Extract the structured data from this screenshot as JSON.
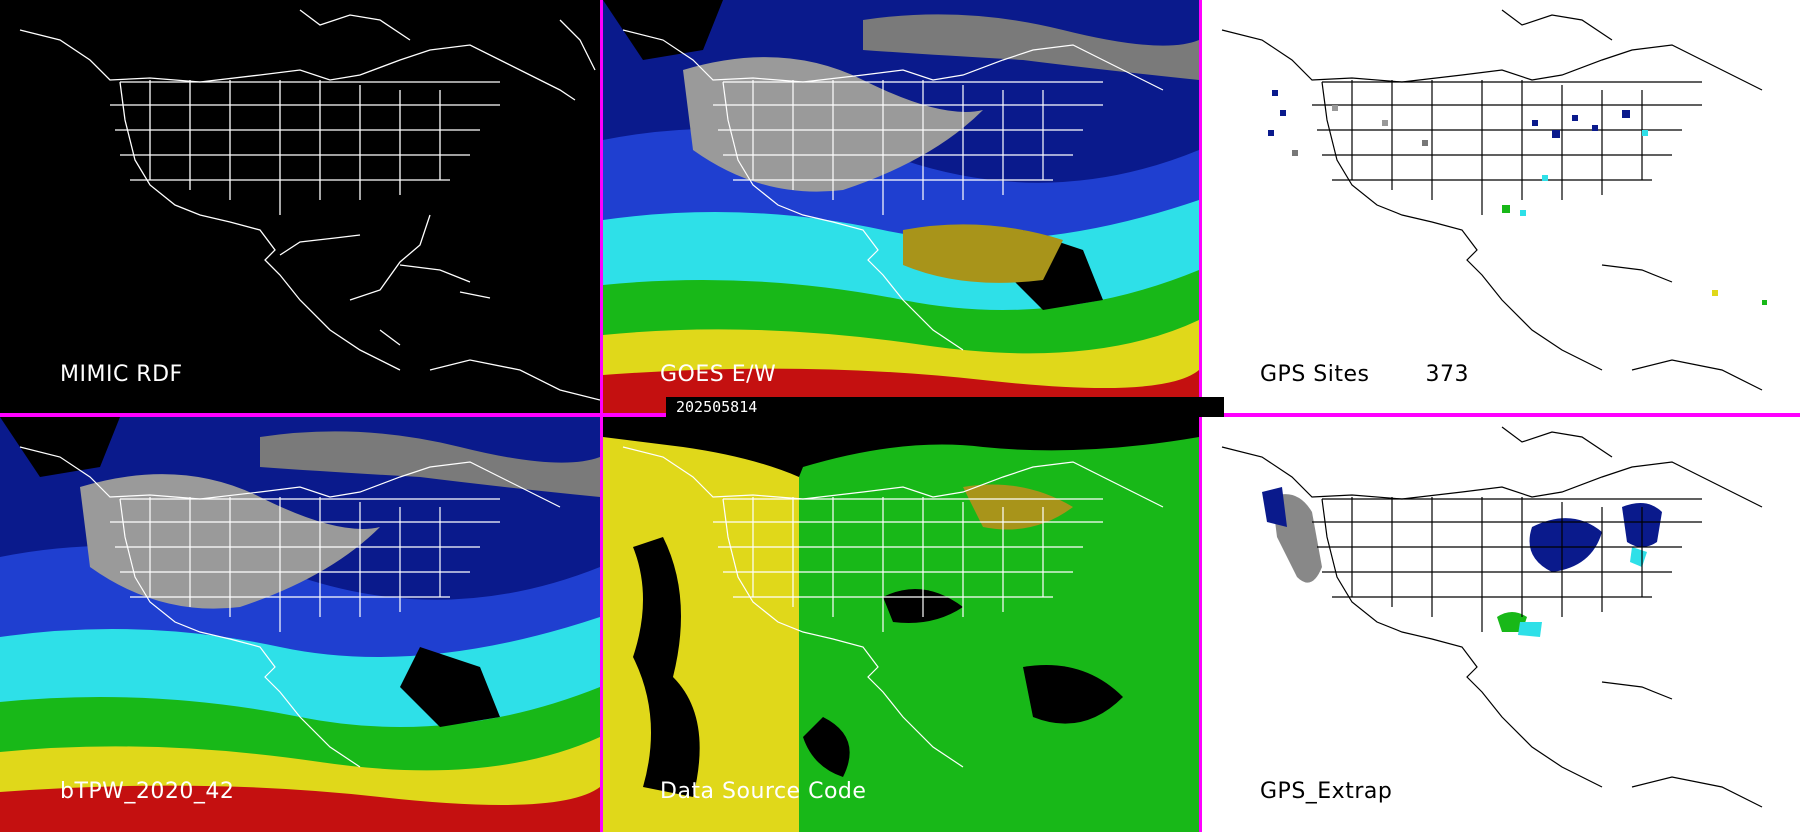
{
  "timestamp": "202505814",
  "panels": [
    {
      "id": "mimic-rdf",
      "label": "MIMIC RDF",
      "style": "black"
    },
    {
      "id": "goes-ew",
      "label": "GOES E/W",
      "style": "tpw"
    },
    {
      "id": "gps-sites",
      "label": "GPS Sites",
      "count": "373",
      "style": "white"
    },
    {
      "id": "btpw",
      "label": "bTPW_2020_42",
      "style": "tpw"
    },
    {
      "id": "data-source-code",
      "label": "Data Source Code",
      "style": "source"
    },
    {
      "id": "gps-extrap",
      "label": "GPS_Extrap",
      "style": "white"
    }
  ],
  "colors": {
    "divider": "#ff00ff",
    "map_lines_dark": "#ffffff",
    "map_lines_light": "#000000",
    "dry_gray": "#9a9a9a",
    "navy": "#0a1a8c",
    "blue": "#1f3fd0",
    "cyan": "#2ee0e8",
    "green": "#18b818",
    "yellow": "#e0d81a",
    "red": "#c41010",
    "olive": "#a8941a"
  }
}
